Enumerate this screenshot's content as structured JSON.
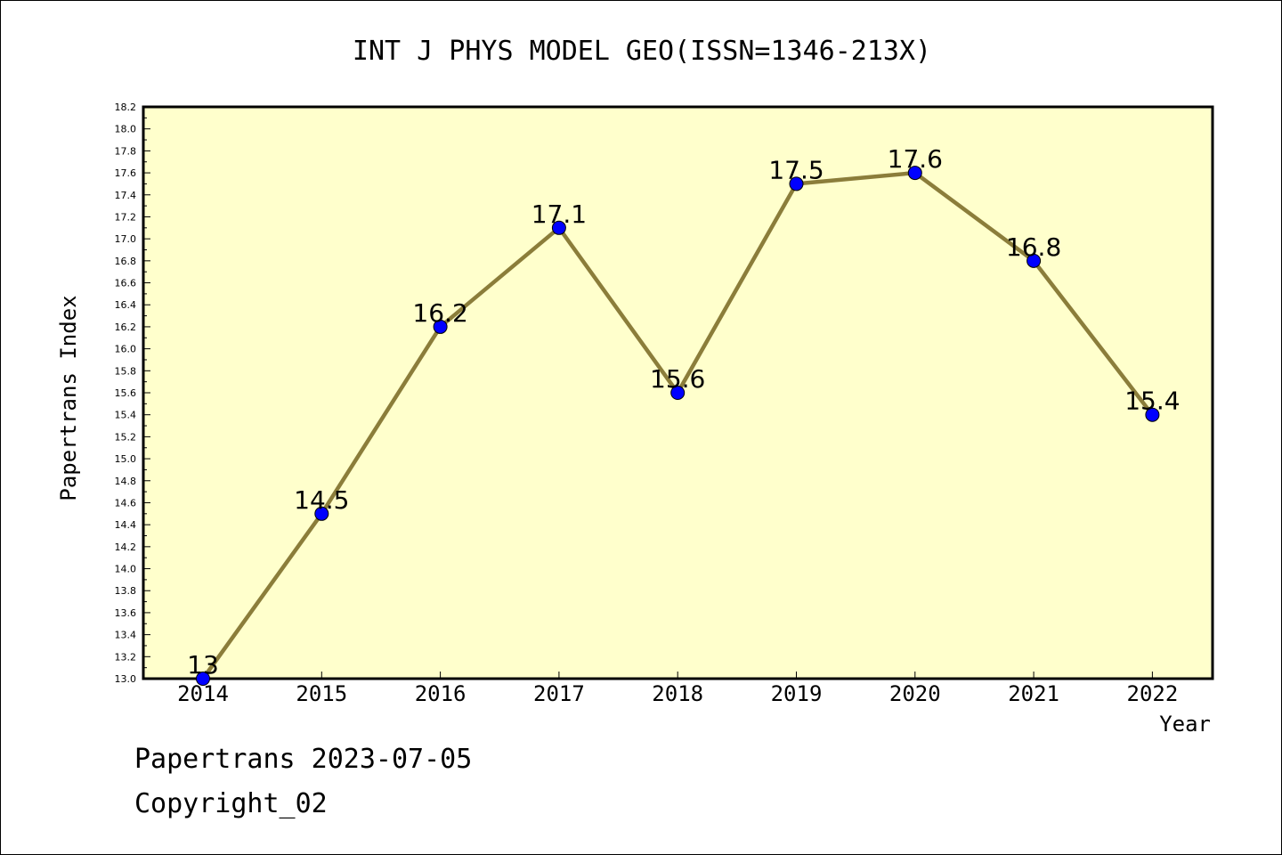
{
  "chart_data": {
    "type": "line",
    "title": "INT J PHYS MODEL GEO(ISSN=1346-213X)",
    "xlabel": "Year",
    "ylabel": "Papertrans Index",
    "categories": [
      "2014",
      "2015",
      "2016",
      "2017",
      "2018",
      "2019",
      "2020",
      "2021",
      "2022"
    ],
    "values": [
      13.0,
      14.5,
      16.2,
      17.1,
      15.6,
      17.5,
      17.6,
      16.8,
      15.4
    ],
    "data_labels": [
      "13",
      "14.5",
      "16.2",
      "17.1",
      "15.6",
      "17.5",
      "17.6",
      "16.8",
      "15.4"
    ],
    "ylim": [
      13.0,
      18.2
    ],
    "y_major_step": 0.2,
    "y_tick_labels": [
      "13.0",
      "13.2",
      "13.4",
      "13.6",
      "13.8",
      "14.0",
      "14.2",
      "14.4",
      "14.6",
      "14.8",
      "15.0",
      "15.2",
      "15.4",
      "15.6",
      "15.8",
      "16.0",
      "16.2",
      "16.4",
      "16.6",
      "16.8",
      "17.0",
      "17.2",
      "17.4",
      "17.6",
      "17.8",
      "18.0",
      "18.2"
    ],
    "grid": false,
    "legend": "none",
    "colors": {
      "plot_background": "#ffffcc",
      "line": "#8b7d3a",
      "marker": "#0000ff",
      "axis": "#000000"
    }
  },
  "footer": {
    "line1": "Papertrans 2023-07-05",
    "line2": "Copyright_02"
  }
}
